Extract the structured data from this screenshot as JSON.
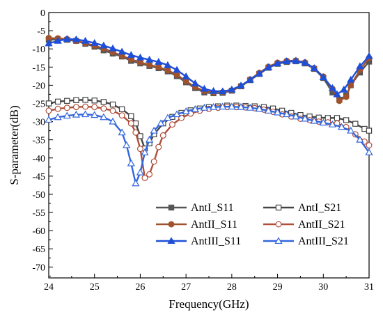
{
  "chart_data": {
    "type": "line",
    "title": "",
    "xlabel": "Frequency(GHz)",
    "ylabel": "S-parameter(dB)",
    "xlim": [
      24,
      31
    ],
    "ylim": [
      -73,
      0
    ],
    "x_ticks": [
      "24",
      "25",
      "26",
      "27",
      "28",
      "29",
      "30",
      "31"
    ],
    "y_ticks": [
      "0",
      "-5",
      "-10",
      "-15",
      "-20",
      "-25",
      "-30",
      "-35",
      "-40",
      "-45",
      "-50",
      "-55",
      "-60",
      "-65",
      "-70"
    ],
    "grid": false,
    "legend_position": "bottom-right",
    "series": [
      {
        "name": "AntI_S11",
        "color": "#555555",
        "marker": "square",
        "filled": true,
        "x": [
          24.0,
          24.2,
          24.4,
          24.6,
          24.8,
          25.0,
          25.2,
          25.4,
          25.6,
          25.8,
          26.0,
          26.2,
          26.4,
          26.6,
          26.8,
          27.0,
          27.2,
          27.4,
          27.6,
          27.8,
          28.0,
          28.2,
          28.4,
          28.6,
          28.8,
          29.0,
          29.2,
          29.4,
          29.6,
          29.8,
          30.0,
          30.2,
          30.35,
          30.5,
          30.6,
          30.8,
          31.0
        ],
        "y": [
          -7.5,
          -7.4,
          -7.5,
          -7.8,
          -8.6,
          -9.4,
          -10.4,
          -11.3,
          -12.1,
          -13.3,
          -14.0,
          -14.7,
          -15.3,
          -16.2,
          -17.5,
          -19.2,
          -20.8,
          -22.0,
          -22.2,
          -22.1,
          -21.5,
          -20.3,
          -18.6,
          -16.9,
          -15.2,
          -14.1,
          -13.6,
          -13.4,
          -14.0,
          -15.5,
          -18.0,
          -22.0,
          -24.0,
          -22.8,
          -20.0,
          -16.5,
          -13.5
        ]
      },
      {
        "name": "AntI_S21",
        "color": "#444444",
        "marker": "square",
        "filled": false,
        "x": [
          24.0,
          24.2,
          24.4,
          24.6,
          24.8,
          25.0,
          25.2,
          25.4,
          25.6,
          25.8,
          25.9,
          26.0,
          26.1,
          26.2,
          26.3,
          26.5,
          26.7,
          26.9,
          27.1,
          27.3,
          27.5,
          27.7,
          27.9,
          28.1,
          28.3,
          28.5,
          28.7,
          28.9,
          29.1,
          29.3,
          29.5,
          29.7,
          29.9,
          30.1,
          30.3,
          30.5,
          30.7,
          30.9,
          31.0
        ],
        "y": [
          -25.0,
          -24.5,
          -24.3,
          -24.1,
          -24.0,
          -24.2,
          -24.6,
          -25.3,
          -26.6,
          -28.5,
          -30.5,
          -34.0,
          -37.4,
          -36.0,
          -33.5,
          -30.5,
          -28.7,
          -27.6,
          -26.9,
          -26.4,
          -26.0,
          -25.8,
          -25.6,
          -25.6,
          -25.7,
          -25.8,
          -26.0,
          -26.4,
          -27.0,
          -27.6,
          -28.2,
          -28.6,
          -28.9,
          -29.0,
          -29.0,
          -29.6,
          -30.6,
          -32.0,
          -32.5
        ]
      },
      {
        "name": "AntII_S11",
        "color": "#a0522d",
        "marker": "circle",
        "filled": true,
        "x": [
          24.0,
          24.2,
          24.4,
          24.6,
          24.8,
          25.0,
          25.2,
          25.4,
          25.6,
          25.8,
          26.0,
          26.2,
          26.4,
          26.6,
          26.8,
          27.0,
          27.2,
          27.4,
          27.6,
          27.8,
          28.0,
          28.2,
          28.4,
          28.6,
          28.8,
          29.0,
          29.2,
          29.4,
          29.6,
          29.8,
          30.0,
          30.2,
          30.35,
          30.5,
          30.6,
          30.8,
          31.0
        ],
        "y": [
          -7.0,
          -7.1,
          -7.3,
          -7.8,
          -8.4,
          -9.1,
          -9.9,
          -10.9,
          -11.9,
          -12.9,
          -13.7,
          -14.4,
          -15.0,
          -15.9,
          -17.1,
          -18.9,
          -20.5,
          -21.6,
          -22.0,
          -21.9,
          -21.4,
          -20.2,
          -18.4,
          -16.6,
          -14.9,
          -13.8,
          -13.3,
          -13.2,
          -13.7,
          -15.3,
          -17.6,
          -21.0,
          -24.3,
          -23.2,
          -20.0,
          -15.8,
          -12.5
        ]
      },
      {
        "name": "AntII_S21",
        "color": "#b04e3a",
        "marker": "circle",
        "filled": false,
        "x": [
          24.0,
          24.2,
          24.4,
          24.6,
          24.8,
          25.0,
          25.2,
          25.4,
          25.6,
          25.8,
          25.9,
          26.0,
          26.1,
          26.2,
          26.3,
          26.4,
          26.5,
          26.7,
          26.9,
          27.1,
          27.3,
          27.5,
          27.7,
          27.9,
          28.1,
          28.3,
          28.5,
          28.7,
          28.9,
          29.1,
          29.3,
          29.5,
          29.7,
          29.9,
          30.1,
          30.3,
          30.5,
          30.7,
          30.9,
          31.0
        ],
        "y": [
          -27.0,
          -26.5,
          -26.2,
          -26.0,
          -25.9,
          -26.0,
          -26.4,
          -27.0,
          -28.3,
          -30.5,
          -33.0,
          -37.5,
          -45.5,
          -44.5,
          -41.0,
          -37.0,
          -33.8,
          -30.8,
          -29.0,
          -27.8,
          -27.0,
          -26.5,
          -26.2,
          -26.0,
          -26.0,
          -26.1,
          -26.3,
          -26.7,
          -27.3,
          -28.0,
          -28.6,
          -29.2,
          -29.6,
          -30.0,
          -30.2,
          -30.5,
          -31.5,
          -33.5,
          -35.5,
          -36.5
        ]
      },
      {
        "name": "AntIII_S11",
        "color": "#1f4fd8",
        "marker": "triangle",
        "filled": true,
        "x": [
          24.0,
          24.2,
          24.4,
          24.6,
          24.8,
          25.0,
          25.2,
          25.4,
          25.6,
          25.8,
          26.0,
          26.2,
          26.4,
          26.6,
          26.8,
          27.0,
          27.2,
          27.4,
          27.6,
          27.8,
          28.0,
          28.2,
          28.4,
          28.6,
          28.8,
          29.0,
          29.2,
          29.4,
          29.6,
          29.8,
          30.0,
          30.2,
          30.3,
          30.45,
          30.6,
          30.8,
          31.0
        ],
        "y": [
          -8.5,
          -7.8,
          -7.3,
          -7.4,
          -7.8,
          -8.4,
          -9.1,
          -9.9,
          -10.8,
          -11.7,
          -12.4,
          -13.0,
          -13.6,
          -14.5,
          -15.8,
          -17.6,
          -19.5,
          -21.0,
          -21.6,
          -21.7,
          -21.2,
          -20.1,
          -18.5,
          -16.8,
          -15.1,
          -14.0,
          -13.4,
          -13.3,
          -13.8,
          -15.3,
          -17.8,
          -20.8,
          -22.5,
          -21.2,
          -18.5,
          -14.8,
          -12.0
        ]
      },
      {
        "name": "AntIII_S21",
        "color": "#3366dd",
        "marker": "triangle",
        "filled": false,
        "x": [
          24.0,
          24.2,
          24.4,
          24.6,
          24.8,
          25.0,
          25.2,
          25.4,
          25.6,
          25.7,
          25.8,
          25.9,
          26.0,
          26.1,
          26.2,
          26.3,
          26.45,
          26.6,
          26.8,
          27.0,
          27.2,
          27.4,
          27.6,
          27.8,
          28.0,
          28.2,
          28.4,
          28.6,
          28.8,
          29.0,
          29.2,
          29.4,
          29.6,
          29.8,
          30.0,
          30.2,
          30.4,
          30.6,
          30.8,
          31.0
        ],
        "y": [
          -29.5,
          -28.8,
          -28.4,
          -28.1,
          -28.0,
          -28.2,
          -28.8,
          -30.0,
          -33.0,
          -36.5,
          -41.5,
          -47.0,
          -44.0,
          -38.5,
          -35.0,
          -32.5,
          -30.5,
          -29.0,
          -28.0,
          -27.2,
          -26.6,
          -26.2,
          -26.0,
          -25.9,
          -25.9,
          -26.0,
          -26.2,
          -26.5,
          -27.0,
          -27.5,
          -28.0,
          -28.6,
          -29.2,
          -29.8,
          -30.3,
          -30.8,
          -31.5,
          -32.5,
          -35.0,
          -38.5
        ]
      }
    ]
  }
}
